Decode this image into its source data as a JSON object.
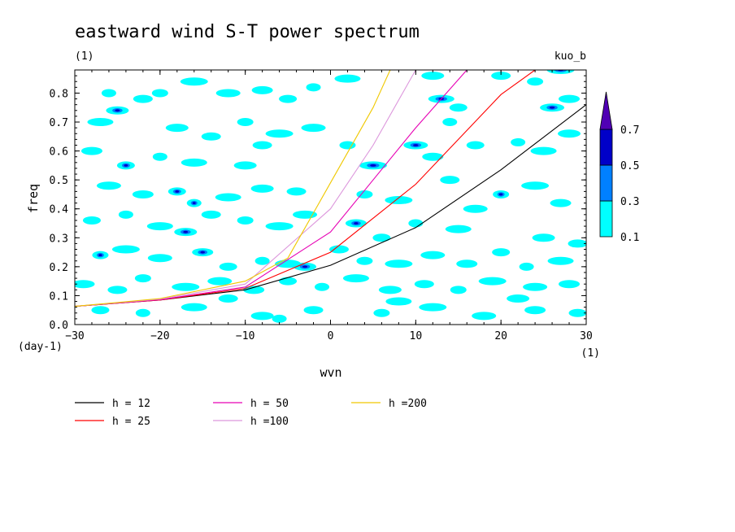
{
  "chart_data": {
    "type": "contour",
    "title": "eastward wind S-T power spectrum",
    "subtitle_left": "(1)",
    "subtitle_right": "kuo_b",
    "xlabel": "wvn",
    "ylabel": "freq",
    "x_unit": "(1)",
    "y_unit": "(day-1)",
    "xlim": [
      -30,
      30
    ],
    "ylim": [
      0,
      0.88
    ],
    "xticks": [
      -30,
      -20,
      -10,
      0,
      10,
      20,
      30
    ],
    "yticks": [
      0.0,
      0.1,
      0.2,
      0.3,
      0.4,
      0.5,
      0.6,
      0.7,
      0.8
    ],
    "ytick_labels": [
      "0.0",
      "0.1",
      "0.2",
      "0.3",
      "0.4",
      "0.5",
      "0.6",
      "0.7",
      "0.8"
    ],
    "contour_levels": [
      0.1,
      0.3,
      0.5,
      0.7
    ],
    "colorbar": {
      "labels": [
        "0.1",
        "0.3",
        "0.5",
        "0.7"
      ],
      "colors": [
        "#00ffff",
        "#0080ff",
        "#0000c8",
        "#5000b4"
      ]
    },
    "dispersion_curves": [
      {
        "name": "h = 12",
        "color": "#000000",
        "h": 12
      },
      {
        "name": "h = 25",
        "color": "#ff0000",
        "h": 25
      },
      {
        "name": "h = 50",
        "color": "#e600b4",
        "h": 50
      },
      {
        "name": "h =100",
        "color": "#dc96dc",
        "h": 100
      },
      {
        "name": "h =200",
        "color": "#f0c800",
        "h": 200
      }
    ],
    "curve_points": {
      "h12": [
        [
          -30,
          0.063
        ],
        [
          -20,
          0.085
        ],
        [
          -10,
          0.12
        ],
        [
          0,
          0.205
        ],
        [
          10,
          0.335
        ],
        [
          20,
          0.535
        ],
        [
          30,
          0.76
        ]
      ],
      "h25": [
        [
          -30,
          0.063
        ],
        [
          -20,
          0.085
        ],
        [
          -10,
          0.125
        ],
        [
          0,
          0.25
        ],
        [
          10,
          0.485
        ],
        [
          20,
          0.795
        ],
        [
          24,
          0.88
        ]
      ],
      "h50": [
        [
          -30,
          0.063
        ],
        [
          -20,
          0.086
        ],
        [
          -10,
          0.13
        ],
        [
          0,
          0.32
        ],
        [
          5,
          0.5
        ],
        [
          10,
          0.68
        ],
        [
          16,
          0.88
        ]
      ],
      "h100": [
        [
          -30,
          0.063
        ],
        [
          -20,
          0.088
        ],
        [
          -10,
          0.14
        ],
        [
          0,
          0.4
        ],
        [
          5,
          0.62
        ],
        [
          10,
          0.88
        ]
      ],
      "h200": [
        [
          -30,
          0.063
        ],
        [
          -20,
          0.09
        ],
        [
          -10,
          0.15
        ],
        [
          -5,
          0.23
        ],
        [
          0,
          0.49
        ],
        [
          5,
          0.75
        ],
        [
          7,
          0.88
        ]
      ]
    },
    "blobs": [
      [
        -26,
        0.8,
        1
      ],
      [
        -27,
        0.7,
        1
      ],
      [
        -25,
        0.74,
        2
      ],
      [
        -22,
        0.78,
        1
      ],
      [
        -20,
        0.8,
        1
      ],
      [
        -16,
        0.84,
        1
      ],
      [
        -12,
        0.8,
        1
      ],
      [
        -8,
        0.81,
        1
      ],
      [
        -5,
        0.78,
        1
      ],
      [
        -2,
        0.82,
        1
      ],
      [
        2,
        0.85,
        1
      ],
      [
        12,
        0.86,
        1
      ],
      [
        20,
        0.86,
        1
      ],
      [
        24,
        0.84,
        1
      ],
      [
        27,
        0.88,
        2
      ],
      [
        26,
        0.75,
        2
      ],
      [
        28,
        0.78,
        1
      ],
      [
        15,
        0.75,
        1
      ],
      [
        14,
        0.7,
        1
      ],
      [
        13,
        0.78,
        2
      ],
      [
        -18,
        0.68,
        1
      ],
      [
        -14,
        0.65,
        1
      ],
      [
        -10,
        0.7,
        1
      ],
      [
        -6,
        0.66,
        1
      ],
      [
        -2,
        0.68,
        1
      ],
      [
        -28,
        0.6,
        1
      ],
      [
        -24,
        0.55,
        2
      ],
      [
        -20,
        0.58,
        1
      ],
      [
        -16,
        0.56,
        1
      ],
      [
        -10,
        0.55,
        1
      ],
      [
        -8,
        0.62,
        1
      ],
      [
        2,
        0.62,
        1
      ],
      [
        5,
        0.55,
        2
      ],
      [
        10,
        0.62,
        2
      ],
      [
        12,
        0.58,
        1
      ],
      [
        17,
        0.62,
        1
      ],
      [
        22,
        0.63,
        1
      ],
      [
        25,
        0.6,
        1
      ],
      [
        28,
        0.66,
        1
      ],
      [
        14,
        0.5,
        1
      ],
      [
        20,
        0.45,
        2
      ],
      [
        24,
        0.48,
        1
      ],
      [
        -26,
        0.48,
        1
      ],
      [
        -22,
        0.45,
        1
      ],
      [
        -18,
        0.46,
        2
      ],
      [
        -16,
        0.42,
        2
      ],
      [
        -12,
        0.44,
        1
      ],
      [
        -8,
        0.47,
        1
      ],
      [
        -4,
        0.46,
        1
      ],
      [
        4,
        0.45,
        1
      ],
      [
        8,
        0.43,
        1
      ],
      [
        17,
        0.4,
        1
      ],
      [
        27,
        0.42,
        1
      ],
      [
        -28,
        0.36,
        1
      ],
      [
        -24,
        0.38,
        1
      ],
      [
        -20,
        0.34,
        1
      ],
      [
        -17,
        0.32,
        2
      ],
      [
        -14,
        0.38,
        1
      ],
      [
        -10,
        0.36,
        1
      ],
      [
        -6,
        0.34,
        1
      ],
      [
        -3,
        0.38,
        1
      ],
      [
        3,
        0.35,
        2
      ],
      [
        6,
        0.3,
        1
      ],
      [
        10,
        0.35,
        1
      ],
      [
        15,
        0.33,
        1
      ],
      [
        25,
        0.3,
        1
      ],
      [
        29,
        0.28,
        1
      ],
      [
        -27,
        0.24,
        2
      ],
      [
        -24,
        0.26,
        1
      ],
      [
        -20,
        0.23,
        1
      ],
      [
        -15,
        0.25,
        2
      ],
      [
        -12,
        0.2,
        1
      ],
      [
        -8,
        0.22,
        1
      ],
      [
        -5,
        0.21,
        1
      ],
      [
        -3,
        0.2,
        2
      ],
      [
        1,
        0.26,
        1
      ],
      [
        4,
        0.22,
        1
      ],
      [
        8,
        0.21,
        1
      ],
      [
        12,
        0.24,
        1
      ],
      [
        16,
        0.21,
        1
      ],
      [
        20,
        0.25,
        1
      ],
      [
        23,
        0.2,
        1
      ],
      [
        27,
        0.22,
        1
      ],
      [
        -29,
        0.14,
        1
      ],
      [
        -25,
        0.12,
        1
      ],
      [
        -22,
        0.16,
        1
      ],
      [
        -17,
        0.13,
        1
      ],
      [
        -13,
        0.15,
        1
      ],
      [
        -9,
        0.12,
        1
      ],
      [
        -5,
        0.15,
        1
      ],
      [
        -1,
        0.13,
        1
      ],
      [
        3,
        0.16,
        1
      ],
      [
        7,
        0.12,
        1
      ],
      [
        11,
        0.14,
        1
      ],
      [
        15,
        0.12,
        1
      ],
      [
        19,
        0.15,
        1
      ],
      [
        24,
        0.13,
        1
      ],
      [
        28,
        0.14,
        1
      ],
      [
        -27,
        0.05,
        1
      ],
      [
        -22,
        0.04,
        1
      ],
      [
        -16,
        0.06,
        1
      ],
      [
        -8,
        0.03,
        1
      ],
      [
        -2,
        0.05,
        1
      ],
      [
        6,
        0.04,
        1
      ],
      [
        12,
        0.06,
        1
      ],
      [
        18,
        0.03,
        1
      ],
      [
        24,
        0.05,
        1
      ],
      [
        29,
        0.04,
        1
      ],
      [
        -6,
        0.02,
        1
      ],
      [
        8,
        0.08,
        1
      ],
      [
        22,
        0.09,
        1
      ],
      [
        -12,
        0.09,
        1
      ]
    ]
  }
}
